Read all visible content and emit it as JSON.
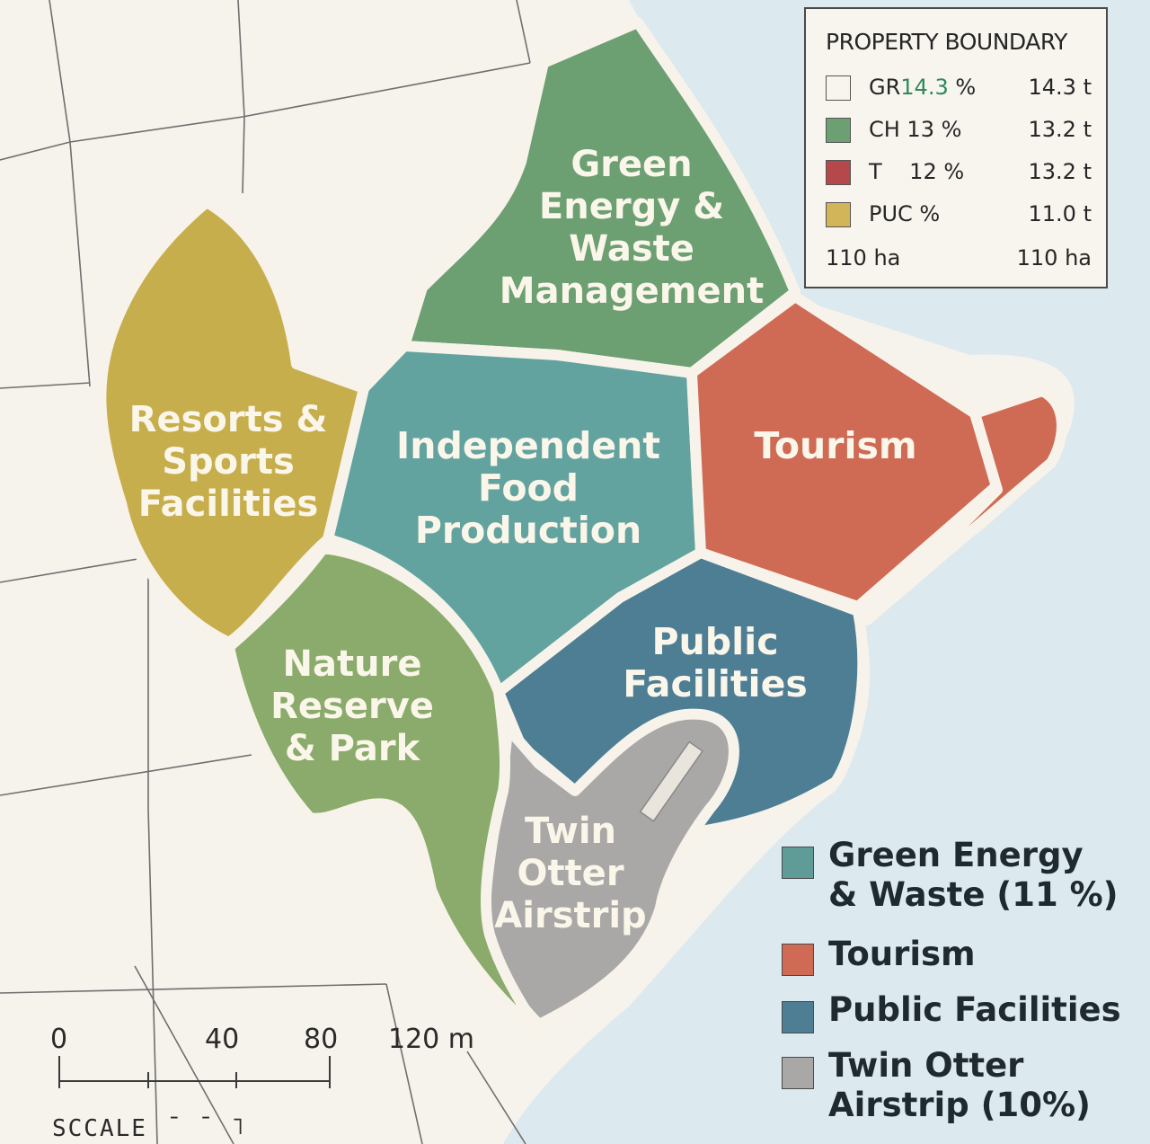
{
  "colors": {
    "land": "#f6f2ec",
    "water": "#dce9ee",
    "street_lines": "#6f6f6f",
    "green_energy": "#6c9f71",
    "food": "#63a39f",
    "tourism": "#cf6b55",
    "public": "#4e7e94",
    "airstrip": "#a9a8a7",
    "resorts": "#c7ae4c",
    "nature": "#8aab6b",
    "boundary": "#f7f3ea"
  },
  "zones": {
    "green_energy": [
      "Green",
      "Energy &",
      "Waste",
      "Management"
    ],
    "food": [
      "Independent",
      "Food",
      "Production"
    ],
    "tourism": [
      "Tourism"
    ],
    "public": [
      "Public",
      "Facilities"
    ],
    "airstrip": [
      "Twin",
      "Otter",
      "Airstrip"
    ],
    "resorts": [
      "Resorts &",
      "Sports",
      "Facilities"
    ],
    "nature": [
      "Nature",
      "Reserve",
      "& Park"
    ]
  },
  "legend": {
    "title": "PROPERTY BOUNDARY",
    "rows": [
      {
        "code": "GR",
        "pct": "14.3",
        "suffix": " %",
        "amount": "14.3 t",
        "color": "#f8f5ef"
      },
      {
        "code": "CH 13 %",
        "pct": "",
        "suffix": "",
        "amount": "13.2 t",
        "color": "#6c9f71"
      },
      {
        "code": "T    12 %",
        "pct": "",
        "suffix": "",
        "amount": "13.2 t",
        "color": "#b5484a"
      },
      {
        "code": "PUC %",
        "pct": "",
        "suffix": "",
        "amount": "11.0 t",
        "color": "#d2b558"
      }
    ],
    "total_left": "110 ha",
    "total_right": "110 ha"
  },
  "lower_legend": [
    {
      "label": "Green Energy\n& Waste (11 %)",
      "color": "#5f9c97"
    },
    {
      "label": "Tourism",
      "color": "#cf6b55"
    },
    {
      "label": "Public Facilities",
      "color": "#4e7e94"
    },
    {
      "label": "Twin Otter\nAirstrip (10%)",
      "color": "#a9a8a7"
    }
  ],
  "scale": {
    "ticks": [
      "0",
      "40",
      "80",
      "120 m"
    ],
    "title": "SCCALE",
    "title_suffix": "¯ ¯ ˥"
  }
}
